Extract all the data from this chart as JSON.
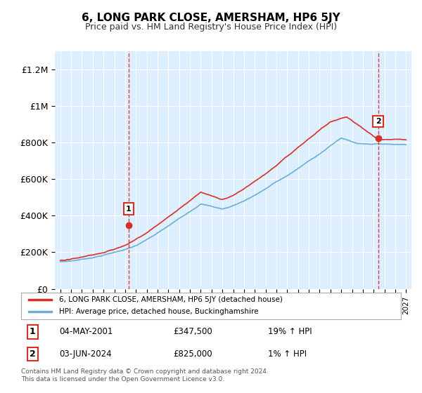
{
  "title": "6, LONG PARK CLOSE, AMERSHAM, HP6 5JY",
  "subtitle": "Price paid vs. HM Land Registry's House Price Index (HPI)",
  "legend_line1": "6, LONG PARK CLOSE, AMERSHAM, HP6 5JY (detached house)",
  "legend_line2": "HPI: Average price, detached house, Buckinghamshire",
  "transaction1_date": "04-MAY-2001",
  "transaction1_price": "£347,500",
  "transaction1_hpi": "19% ↑ HPI",
  "transaction2_date": "03-JUN-2024",
  "transaction2_price": "£825,000",
  "transaction2_hpi": "1% ↑ HPI",
  "footer": "Contains HM Land Registry data © Crown copyright and database right 2024.\nThis data is licensed under the Open Government Licence v3.0.",
  "hpi_color": "#6baed6",
  "price_color": "#d73027",
  "vline_color": "#d73027",
  "bg_color": "#ddeeff",
  "ylim": [
    0,
    1300000
  ],
  "yticks": [
    0,
    200000,
    400000,
    600000,
    800000,
    1000000,
    1200000
  ],
  "ytick_labels": [
    "£0",
    "£200K",
    "£400K",
    "£600K",
    "£800K",
    "£1M",
    "£1.2M"
  ]
}
